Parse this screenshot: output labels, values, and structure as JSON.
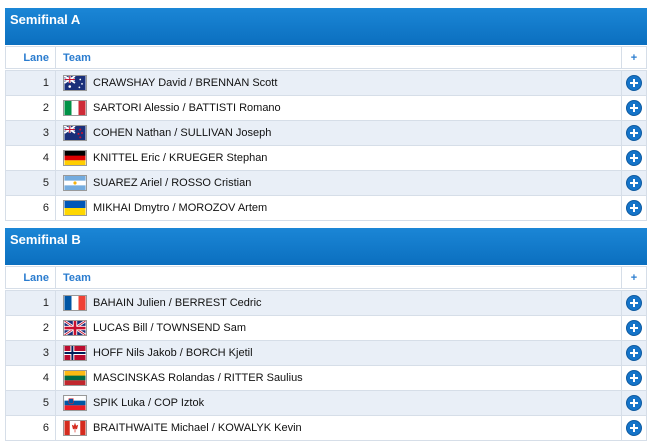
{
  "sections": [
    {
      "title": "Semifinal A",
      "header": {
        "lane": "Lane",
        "team": "Team",
        "add": "+"
      },
      "rows": [
        {
          "lane": 1,
          "team": "CRAWSHAY David / BRENNAN Scott"
        },
        {
          "lane": 2,
          "team": "SARTORI Alessio / BATTISTI Romano"
        },
        {
          "lane": 3,
          "team": "COHEN Nathan / SULLIVAN Joseph"
        },
        {
          "lane": 4,
          "team": "KNITTEL Eric / KRUEGER Stephan"
        },
        {
          "lane": 5,
          "team": "SUAREZ Ariel / ROSSO Cristian"
        },
        {
          "lane": 6,
          "team": "MIKHAI Dmytro / MOROZOV Artem"
        }
      ]
    },
    {
      "title": "Semifinal B",
      "header": {
        "lane": "Lane",
        "team": "Team",
        "add": "+"
      },
      "rows": [
        {
          "lane": 1,
          "team": "BAHAIN Julien / BERREST Cedric"
        },
        {
          "lane": 2,
          "team": "LUCAS Bill / TOWNSEND Sam"
        },
        {
          "lane": 3,
          "team": "HOFF Nils Jakob / BORCH Kjetil"
        },
        {
          "lane": 4,
          "team": "MASCINSKAS Rolandas / RITTER Saulius"
        },
        {
          "lane": 5,
          "team": "SPIK Luka / COP Iztok"
        },
        {
          "lane": 6,
          "team": "BRAITHWAITE Michael / KOWALYK Kevin"
        }
      ]
    }
  ]
}
